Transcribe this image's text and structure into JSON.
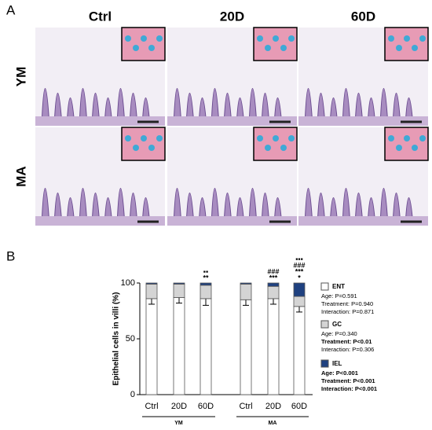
{
  "panel_a": {
    "label": "A",
    "columns": [
      "Ctrl",
      "20D",
      "60D"
    ],
    "rows": [
      "YM",
      "MA"
    ]
  },
  "panel_b": {
    "label": "B"
  },
  "chart_data": {
    "type": "bar",
    "stacked": true,
    "ylabel": "Epithelial cells in villi (%)",
    "categories": [
      "Ctrl",
      "20D",
      "60D",
      "Ctrl",
      "20D",
      "60D"
    ],
    "groups": [
      "YM",
      "MA"
    ],
    "ylim": [
      0,
      100
    ],
    "yticks": [
      0,
      50,
      100
    ],
    "series": [
      {
        "name": "ENT",
        "color": "#ffffff",
        "values": [
          86,
          87,
          86,
          85,
          86,
          79
        ],
        "errors": [
          5,
          5,
          6,
          5,
          5,
          5
        ],
        "stats": [
          {
            "text": "Age: P=0.591",
            "bold": false
          },
          {
            "text": "Treatment: P=0.940",
            "bold": false
          },
          {
            "text": "Interaction: P=0.871",
            "bold": false
          }
        ]
      },
      {
        "name": "GC",
        "color": "#d4d4d4",
        "values": [
          13,
          12,
          12,
          14,
          11,
          9
        ],
        "stats": [
          {
            "text": "Age: P=0.340",
            "bold": false
          },
          {
            "text": "Treatment: P<0.01",
            "bold": true
          },
          {
            "text": "Interaction: P=0.306",
            "bold": false
          }
        ]
      },
      {
        "name": "IEL",
        "color": "#1f4180",
        "values": [
          1,
          1,
          2,
          1,
          3,
          12
        ],
        "stats": [
          {
            "text": "Age: P<0.001",
            "bold": true
          },
          {
            "text": "Treatment: P<0.001",
            "bold": true
          },
          {
            "text": "Interaction: P<0.001",
            "bold": true
          }
        ]
      }
    ],
    "annotations": [
      null,
      null,
      [
        {
          "text": "▪▪",
          "color": "#1f4180"
        },
        {
          "text": "**",
          "color": "#1f4180"
        }
      ],
      null,
      [
        {
          "text": "###",
          "color": "#1f4180"
        },
        {
          "text": "***",
          "color": "#1f4180"
        }
      ],
      [
        {
          "text": "▪▪▪",
          "color": "#1f4180"
        },
        {
          "text": "###",
          "color": "#1f4180"
        },
        {
          "text": "***",
          "color": "#1f4180"
        },
        {
          "text": "*",
          "color": "#000000"
        }
      ]
    ]
  }
}
